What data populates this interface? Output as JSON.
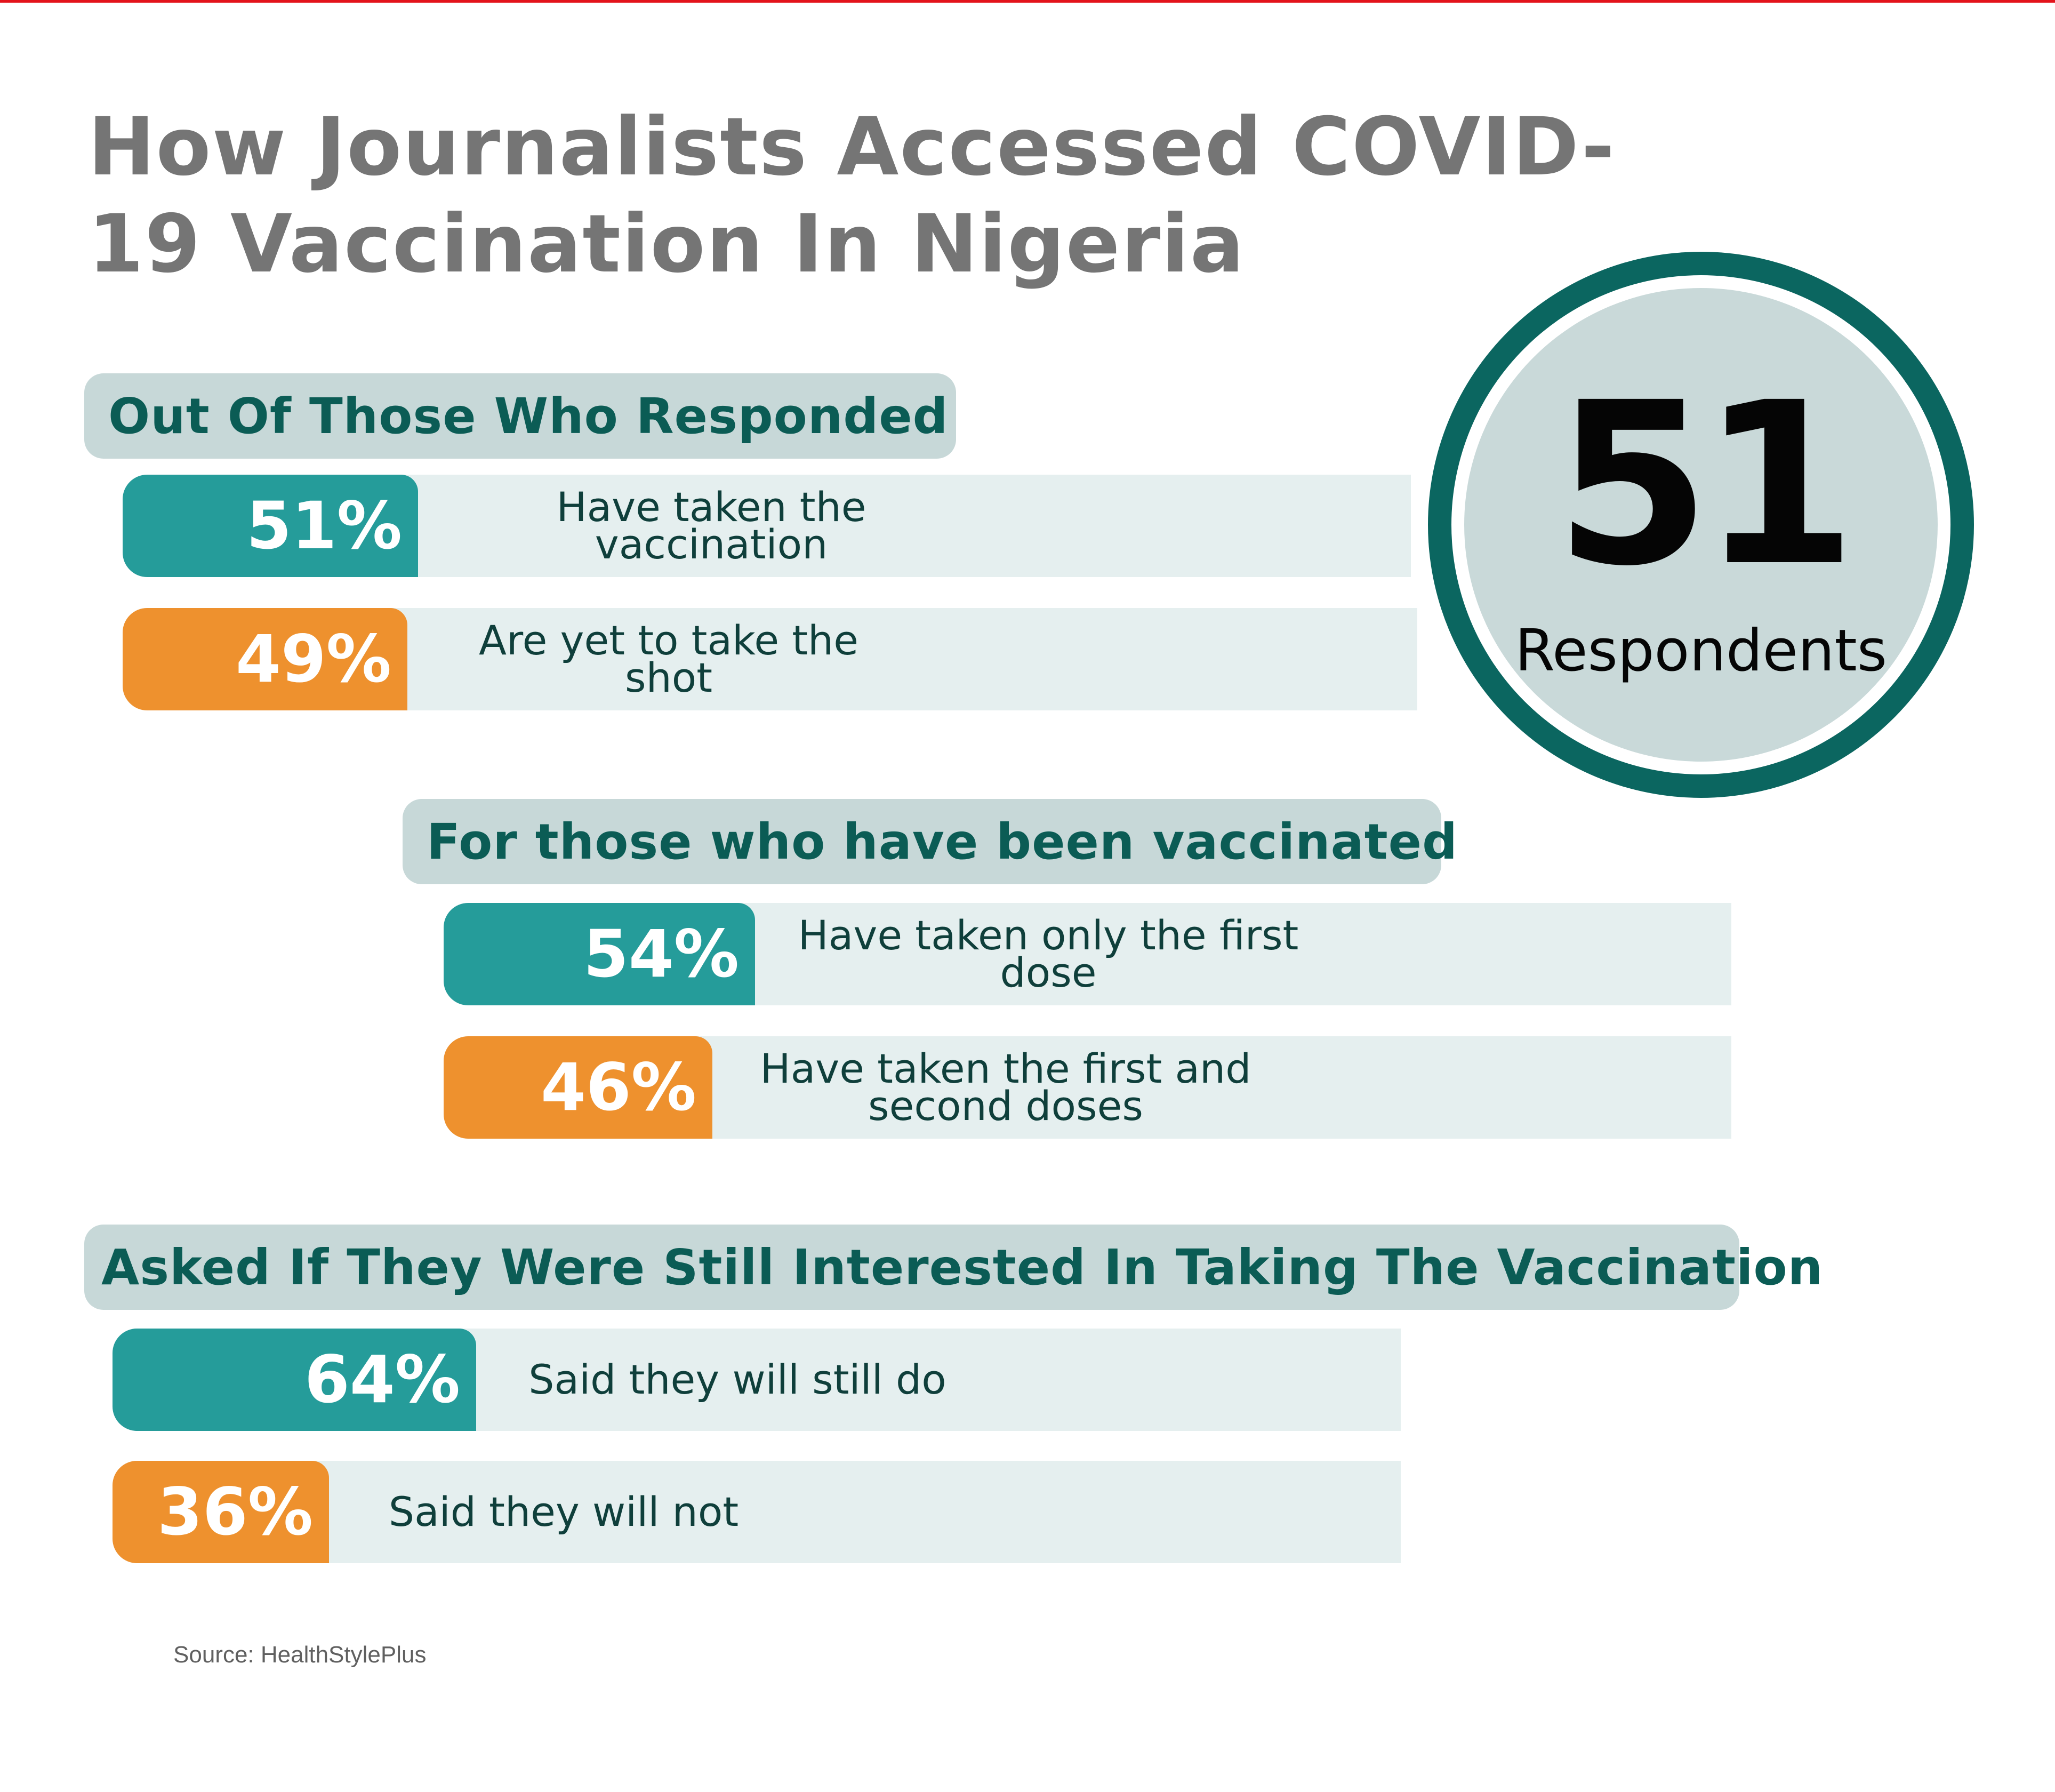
{
  "title": "How Journalists Accessed COVID-19 Vaccination In Nigeria",
  "badge": {
    "number": "51",
    "label": "Respondents"
  },
  "sections": [
    {
      "header": "Out Of Those Who Responded",
      "bars": [
        {
          "value_text": "51%",
          "label": "Have taken the vaccination",
          "color": "teal"
        },
        {
          "value_text": "49%",
          "label": "Are yet to take the shot",
          "color": "orange"
        }
      ]
    },
    {
      "header": "For those who have been vaccinated",
      "bars": [
        {
          "value_text": "54%",
          "label": "Have taken only the first dose",
          "color": "teal"
        },
        {
          "value_text": "46%",
          "label": "Have taken the first and second doses",
          "color": "orange"
        }
      ]
    },
    {
      "header": "Asked If They Were Still Interested In Taking The Vaccination",
      "bars": [
        {
          "value_text": "64%",
          "label": "Said they will still do",
          "color": "teal"
        },
        {
          "value_text": "36%",
          "label": "Said they will not",
          "color": "orange"
        }
      ]
    }
  ],
  "source": "Source:  HealthStylePlus",
  "colors": {
    "teal": "#259c9a",
    "orange": "#ee912e",
    "dark_teal": "#0b5c55",
    "header_bg": "#c7d8d8",
    "track_bg": "#e5efef",
    "title_gray": "#757575",
    "top_rule": "#e3131b"
  },
  "chart_data": [
    {
      "type": "bar",
      "title": "Out Of Those Who Responded",
      "categories": [
        "Have taken the vaccination",
        "Are yet to take the shot"
      ],
      "values": [
        51,
        49
      ],
      "unit": "%"
    },
    {
      "type": "bar",
      "title": "For those who have been vaccinated",
      "categories": [
        "Have taken only the first dose",
        "Have taken the first and second doses"
      ],
      "values": [
        54,
        46
      ],
      "unit": "%"
    },
    {
      "type": "bar",
      "title": "Asked If They Were Still Interested In Taking The Vaccination",
      "categories": [
        "Said they will still do",
        "Said they will not"
      ],
      "values": [
        64,
        36
      ],
      "unit": "%"
    }
  ]
}
